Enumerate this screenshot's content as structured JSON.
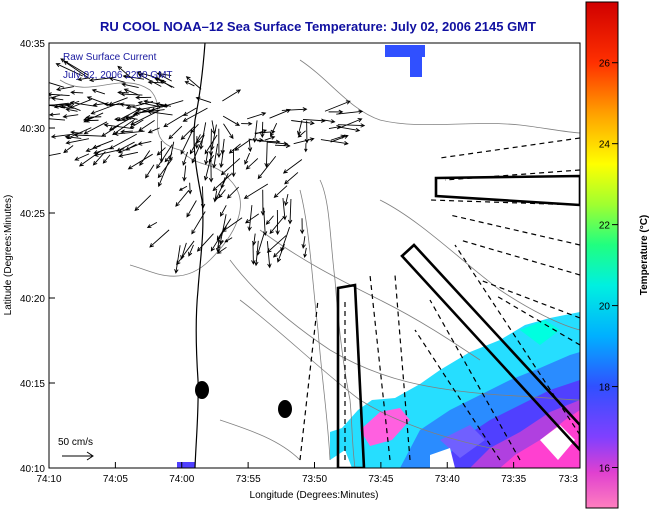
{
  "chart_data": {
    "type": "map",
    "title": "RU COOL  NOAA–12  Sea Surface Temperature:  July 02, 2006 2145 GMT",
    "xlabel": "Longitude (Degrees:Minutes)",
    "ylabel": "Latitude (Degrees:Minutes)",
    "x_ticks": [
      "74:10",
      "74:05",
      "74:00",
      "73:55",
      "73:50",
      "73:45",
      "73:40",
      "73:35",
      "73:3"
    ],
    "y_ticks": [
      "40:35",
      "40:30",
      "40:25",
      "40:20",
      "40:15",
      "40:10"
    ],
    "annotations": {
      "current_title": "Raw Surface Current",
      "current_date": "July 02, 2006 2200 GMT",
      "scale_label": "50 cm/s"
    },
    "colorbar": {
      "label": "Temperature (°C)",
      "ticks": [
        "26",
        "24",
        "22",
        "20",
        "18",
        "16"
      ],
      "range": [
        15,
        27.5
      ]
    }
  }
}
